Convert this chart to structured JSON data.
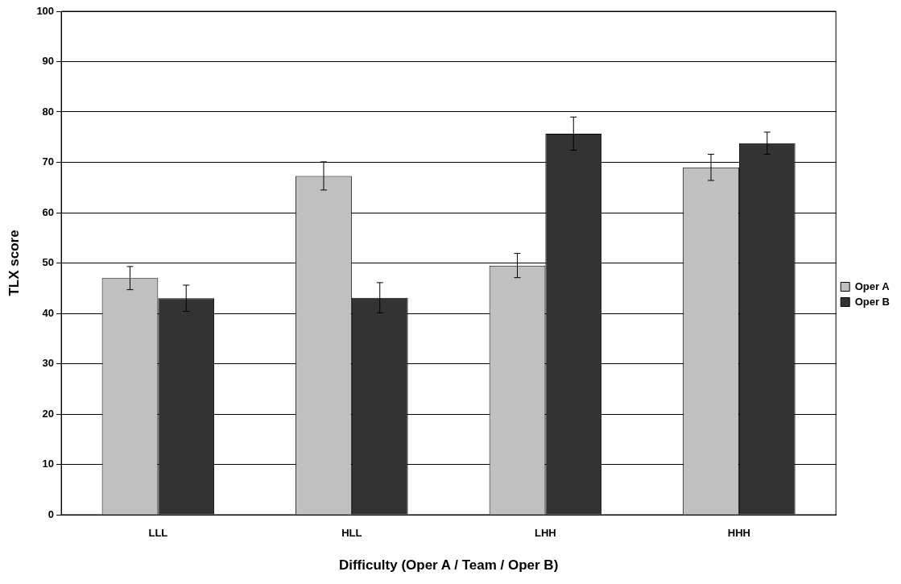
{
  "chart_data": {
    "type": "bar",
    "xlabel": "Difficulty (Oper A / Team / Oper B)",
    "ylabel": "TLX score",
    "categories": [
      "LLL",
      "HLL",
      "LHH",
      "HHH"
    ],
    "series": [
      {
        "name": "Oper A",
        "color": "#c0c0c0",
        "values": [
          47.0,
          67.3,
          49.5,
          69.0
        ],
        "errors": [
          2.3,
          2.8,
          2.4,
          2.6
        ]
      },
      {
        "name": "Oper B",
        "color": "#333333",
        "values": [
          43.0,
          43.1,
          75.7,
          73.8
        ],
        "errors": [
          2.6,
          3.0,
          3.3,
          2.2
        ]
      }
    ],
    "ylim": [
      0,
      100
    ],
    "yticks": [
      0,
      10,
      20,
      30,
      40,
      50,
      60,
      70,
      80,
      90,
      100
    ],
    "grid": "y",
    "legend": "right"
  }
}
